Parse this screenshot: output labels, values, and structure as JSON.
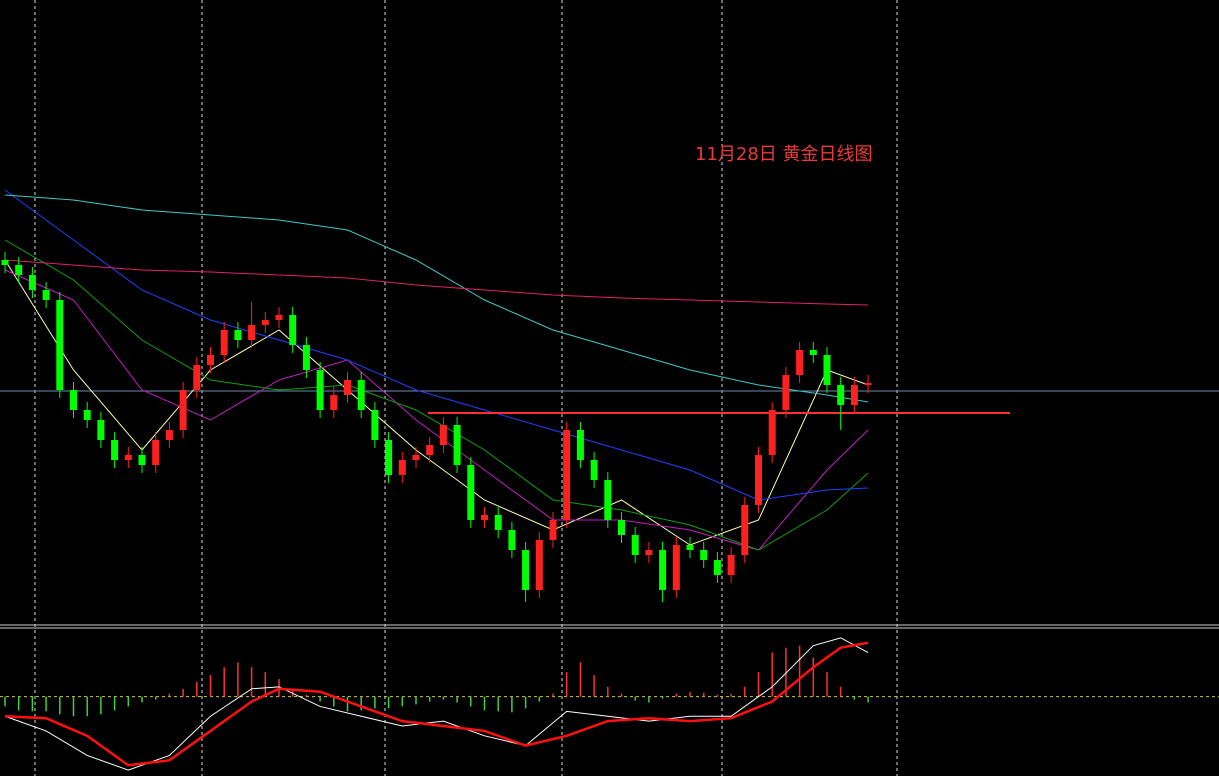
{
  "chart_data": {
    "type": "candlestick",
    "title": "11月28日 黄金日线图",
    "open": [
      360,
      355,
      345,
      330,
      320,
      230,
      210,
      200,
      180,
      160,
      165,
      155,
      180,
      190,
      230,
      255,
      265,
      290,
      280,
      295,
      300,
      305,
      275,
      250,
      210,
      225,
      240,
      210,
      180,
      145,
      160,
      165,
      175,
      195,
      155,
      100,
      105,
      90,
      70,
      30,
      80,
      100,
      190,
      160,
      140,
      100,
      85,
      65,
      70,
      30,
      75,
      70,
      60,
      45,
      65,
      115,
      165,
      210,
      245,
      270,
      265,
      235,
      215,
      235
    ],
    "high": [
      368,
      363,
      353,
      338,
      328,
      238,
      218,
      208,
      188,
      173,
      173,
      188,
      198,
      238,
      263,
      273,
      298,
      298,
      318,
      308,
      313,
      313,
      283,
      258,
      233,
      248,
      248,
      218,
      188,
      168,
      173,
      183,
      203,
      203,
      163,
      113,
      113,
      98,
      78,
      88,
      108,
      198,
      198,
      168,
      148,
      108,
      93,
      78,
      78,
      83,
      83,
      78,
      68,
      73,
      123,
      173,
      218,
      253,
      278,
      278,
      273,
      243,
      243,
      245
    ],
    "low": [
      347,
      337,
      322,
      312,
      222,
      202,
      192,
      172,
      152,
      152,
      147,
      147,
      172,
      182,
      222,
      247,
      257,
      272,
      272,
      287,
      292,
      267,
      242,
      202,
      202,
      217,
      202,
      172,
      137,
      137,
      152,
      157,
      167,
      147,
      92,
      92,
      82,
      62,
      18,
      22,
      72,
      92,
      152,
      132,
      92,
      77,
      57,
      57,
      18,
      22,
      62,
      52,
      37,
      37,
      57,
      107,
      157,
      202,
      237,
      257,
      227,
      190,
      207,
      227
    ],
    "close": [
      355,
      345,
      330,
      320,
      230,
      210,
      200,
      180,
      160,
      165,
      155,
      180,
      190,
      230,
      255,
      265,
      290,
      280,
      295,
      300,
      305,
      275,
      250,
      210,
      225,
      240,
      210,
      180,
      145,
      160,
      165,
      175,
      195,
      155,
      100,
      105,
      90,
      70,
      30,
      80,
      100,
      190,
      160,
      140,
      100,
      85,
      65,
      70,
      30,
      75,
      70,
      60,
      45,
      65,
      115,
      165,
      210,
      245,
      270,
      265,
      235,
      215,
      235,
      237
    ],
    "up_color": "#ff2020",
    "down_color": "#00ff00",
    "ylim": [
      0,
      620
    ],
    "moving_averages": [
      {
        "color": "#ffffb0",
        "x": [
          0,
          5,
          10,
          15,
          20,
          25,
          30,
          35,
          40,
          45,
          50,
          55,
          60,
          63
        ],
        "values": [
          360,
          250,
          170,
          250,
          290,
          230,
          170,
          120,
          90,
          120,
          75,
          100,
          250,
          235
        ]
      },
      {
        "color": "#c020c0",
        "x": [
          0,
          5,
          10,
          15,
          20,
          25,
          30,
          35,
          40,
          45,
          50,
          55,
          60,
          63
        ],
        "values": [
          350,
          320,
          230,
          200,
          240,
          260,
          200,
          150,
          100,
          100,
          90,
          70,
          150,
          190
        ]
      },
      {
        "color": "#10a010",
        "x": [
          0,
          5,
          10,
          15,
          20,
          25,
          30,
          35,
          40,
          45,
          50,
          55,
          60,
          63
        ],
        "values": [
          380,
          340,
          280,
          240,
          230,
          235,
          210,
          170,
          120,
          110,
          95,
          70,
          110,
          147
        ]
      },
      {
        "color": "#2040ff",
        "x": [
          0,
          5,
          10,
          15,
          20,
          25,
          30,
          35,
          40,
          45,
          50,
          55,
          60,
          63
        ],
        "values": [
          430,
          380,
          330,
          300,
          280,
          260,
          230,
          210,
          190,
          170,
          150,
          120,
          130,
          132
        ]
      },
      {
        "color": "#40c8c8",
        "x": [
          0,
          5,
          10,
          15,
          20,
          25,
          30,
          35,
          40,
          45,
          50,
          55,
          60,
          63
        ],
        "values": [
          425,
          420,
          410,
          405,
          400,
          390,
          360,
          320,
          290,
          270,
          250,
          235,
          225,
          218
        ]
      },
      {
        "color": "#e0206a",
        "x": [
          0,
          5,
          10,
          15,
          20,
          25,
          30,
          35,
          40,
          45,
          50,
          55,
          60,
          63
        ],
        "values": [
          360,
          355,
          350,
          348,
          345,
          342,
          335,
          330,
          325,
          322,
          320,
          318,
          316,
          315
        ]
      }
    ],
    "price_line": {
      "value": 229,
      "color": "#6a8cb0"
    },
    "level_line": {
      "value": 207,
      "color": "#ff3030"
    },
    "macd": {
      "ylim": [
        -81,
        67
      ],
      "zero_color": "#c8c850",
      "pos_color": "#ff3030",
      "neg_color": "#40d040",
      "histogram": [
        -10,
        -14,
        -15,
        -15,
        -18,
        -20,
        -20,
        -18,
        -14,
        -10,
        -6,
        -3,
        3,
        8,
        15,
        22,
        30,
        35,
        30,
        25,
        18,
        8,
        2,
        -5,
        -10,
        -15,
        -14,
        -12,
        -12,
        -10,
        -8,
        -5,
        -3,
        -6,
        -10,
        -14,
        -15,
        -16,
        -12,
        -5,
        3,
        25,
        35,
        22,
        10,
        3,
        -4,
        -6,
        -2,
        3,
        5,
        4,
        2,
        3,
        10,
        25,
        45,
        50,
        52,
        40,
        25,
        10,
        -3,
        -6
      ],
      "x": [
        0,
        3,
        6,
        9,
        12,
        15,
        18,
        20,
        23,
        26,
        29,
        32,
        35,
        38,
        41,
        44,
        47,
        50,
        53,
        56,
        59,
        61,
        63
      ],
      "dif": {
        "color": "#ffffff",
        "values": [
          -20,
          -35,
          -60,
          -75,
          -60,
          -20,
          8,
          10,
          -10,
          -20,
          -30,
          -25,
          -40,
          -50,
          -15,
          -20,
          -25,
          -20,
          -20,
          10,
          52,
          60,
          45
        ]
      },
      "dea": {
        "color": "#ff1010",
        "values": [
          -20,
          -22,
          -40,
          -70,
          -65,
          -35,
          -5,
          8,
          5,
          -10,
          -25,
          -30,
          -35,
          -50,
          -40,
          -25,
          -22,
          -25,
          -22,
          -5,
          30,
          50,
          55
        ]
      }
    }
  }
}
